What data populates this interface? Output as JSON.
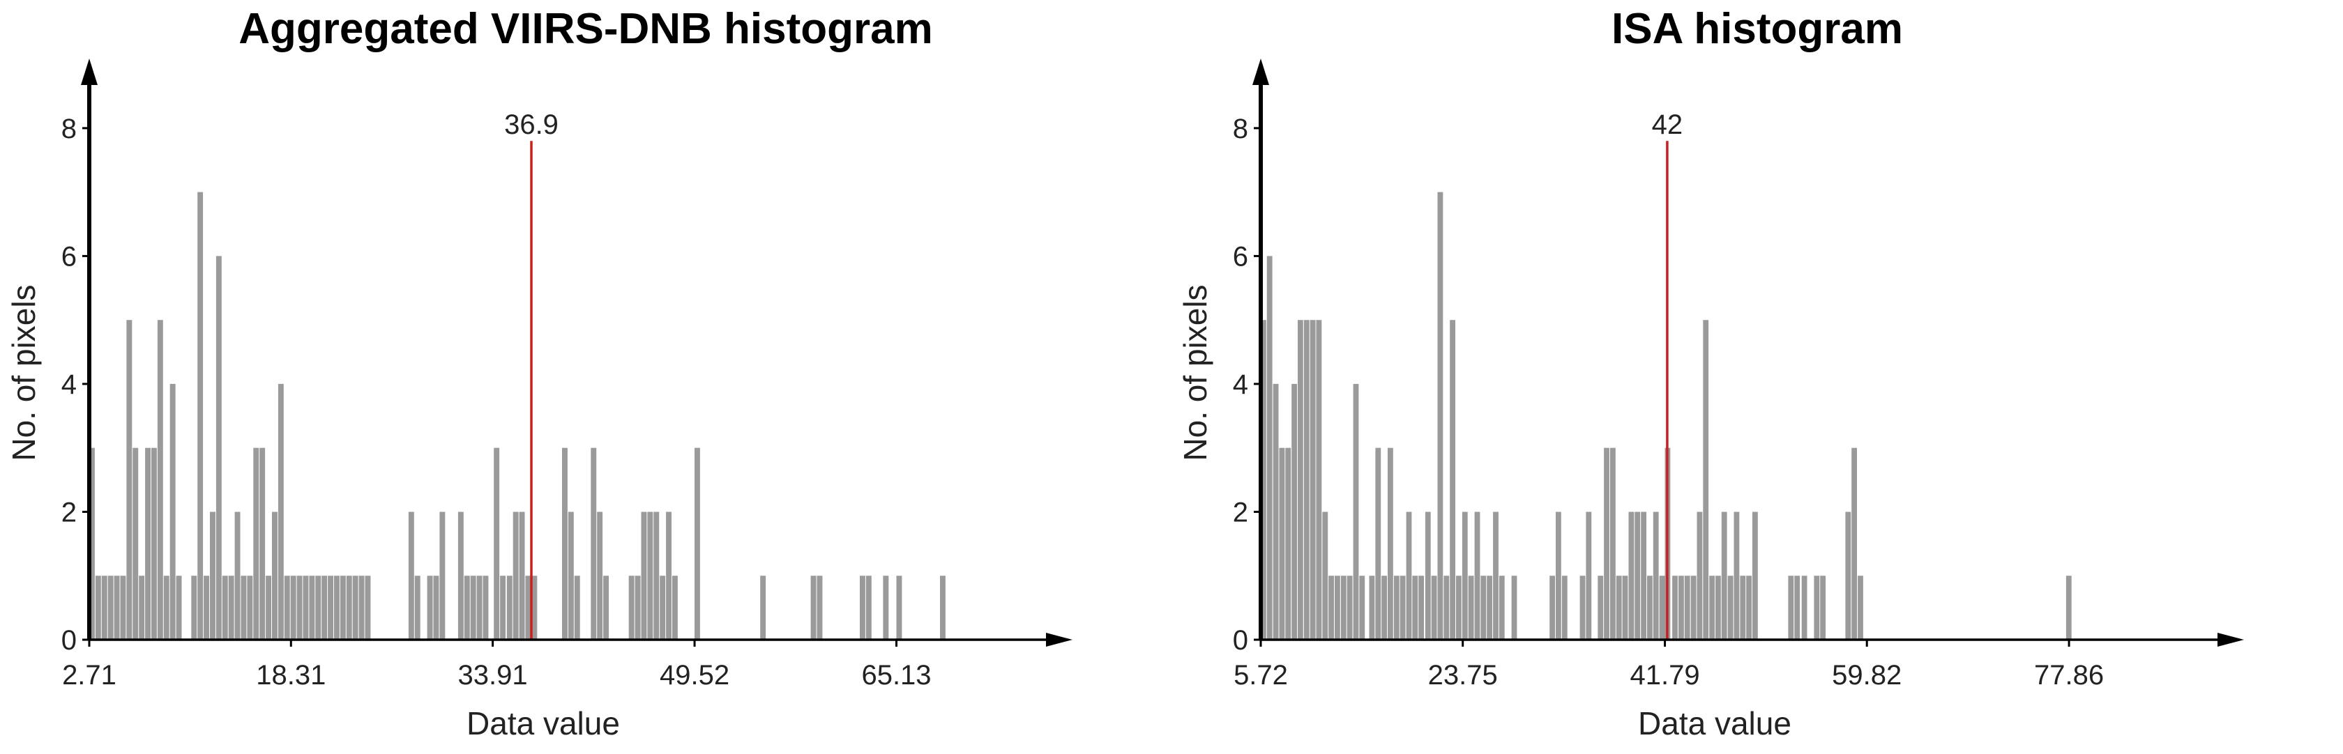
{
  "chart_data": [
    {
      "type": "bar",
      "title": "Aggregated VIIRS-DNB histogram",
      "xlabel": "Data value",
      "ylabel": "No. of pixels",
      "x_ticks": [
        "2.71",
        "18.31",
        "33.91",
        "49.52",
        "65.13"
      ],
      "y_ticks": [
        "0",
        "2",
        "4",
        "6",
        "8"
      ],
      "xlim": [
        2.71,
        74
      ],
      "ylim": [
        0,
        8.5
      ],
      "bin_width": 0.48,
      "bar_color": "#9a9a9b",
      "marker_color": "#c82020",
      "marker": {
        "value": 36.9,
        "label": "36.9"
      },
      "bins": [
        {
          "x": 2.71,
          "count": 3
        },
        {
          "x": 3.19,
          "count": 1
        },
        {
          "x": 3.67,
          "count": 1
        },
        {
          "x": 4.15,
          "count": 1
        },
        {
          "x": 4.63,
          "count": 1
        },
        {
          "x": 5.11,
          "count": 1
        },
        {
          "x": 5.59,
          "count": 5
        },
        {
          "x": 6.07,
          "count": 3
        },
        {
          "x": 6.55,
          "count": 1
        },
        {
          "x": 7.03,
          "count": 3
        },
        {
          "x": 7.51,
          "count": 3
        },
        {
          "x": 7.99,
          "count": 5
        },
        {
          "x": 8.47,
          "count": 1
        },
        {
          "x": 8.95,
          "count": 4
        },
        {
          "x": 9.43,
          "count": 1
        },
        {
          "x": 10.6,
          "count": 1
        },
        {
          "x": 11.08,
          "count": 7
        },
        {
          "x": 11.56,
          "count": 1
        },
        {
          "x": 12.04,
          "count": 2
        },
        {
          "x": 12.52,
          "count": 6
        },
        {
          "x": 13.0,
          "count": 1
        },
        {
          "x": 13.48,
          "count": 1
        },
        {
          "x": 13.96,
          "count": 2
        },
        {
          "x": 14.44,
          "count": 1
        },
        {
          "x": 14.92,
          "count": 1
        },
        {
          "x": 15.4,
          "count": 3
        },
        {
          "x": 15.88,
          "count": 3
        },
        {
          "x": 16.36,
          "count": 1
        },
        {
          "x": 16.84,
          "count": 2
        },
        {
          "x": 17.32,
          "count": 4
        },
        {
          "x": 17.8,
          "count": 1
        },
        {
          "x": 18.28,
          "count": 1
        },
        {
          "x": 18.76,
          "count": 1
        },
        {
          "x": 19.24,
          "count": 1
        },
        {
          "x": 19.72,
          "count": 1
        },
        {
          "x": 20.2,
          "count": 1
        },
        {
          "x": 20.68,
          "count": 1
        },
        {
          "x": 21.16,
          "count": 1
        },
        {
          "x": 21.64,
          "count": 1
        },
        {
          "x": 22.12,
          "count": 1
        },
        {
          "x": 22.6,
          "count": 1
        },
        {
          "x": 23.08,
          "count": 1
        },
        {
          "x": 23.56,
          "count": 1
        },
        {
          "x": 24.04,
          "count": 1
        },
        {
          "x": 27.4,
          "count": 2
        },
        {
          "x": 27.88,
          "count": 1
        },
        {
          "x": 28.84,
          "count": 1
        },
        {
          "x": 29.32,
          "count": 1
        },
        {
          "x": 29.8,
          "count": 2
        },
        {
          "x": 31.23,
          "count": 2
        },
        {
          "x": 31.71,
          "count": 1
        },
        {
          "x": 32.19,
          "count": 1
        },
        {
          "x": 32.67,
          "count": 1
        },
        {
          "x": 33.15,
          "count": 1
        },
        {
          "x": 34.0,
          "count": 3
        },
        {
          "x": 34.48,
          "count": 1
        },
        {
          "x": 35.0,
          "count": 1
        },
        {
          "x": 35.48,
          "count": 2
        },
        {
          "x": 35.96,
          "count": 2
        },
        {
          "x": 36.44,
          "count": 1
        },
        {
          "x": 36.92,
          "count": 1
        },
        {
          "x": 39.27,
          "count": 3
        },
        {
          "x": 39.75,
          "count": 2
        },
        {
          "x": 40.23,
          "count": 1
        },
        {
          "x": 41.5,
          "count": 3
        },
        {
          "x": 41.98,
          "count": 2
        },
        {
          "x": 42.46,
          "count": 1
        },
        {
          "x": 44.43,
          "count": 1
        },
        {
          "x": 44.91,
          "count": 1
        },
        {
          "x": 45.39,
          "count": 2
        },
        {
          "x": 45.87,
          "count": 2
        },
        {
          "x": 46.35,
          "count": 2
        },
        {
          "x": 46.83,
          "count": 1
        },
        {
          "x": 47.31,
          "count": 2
        },
        {
          "x": 47.79,
          "count": 1
        },
        {
          "x": 49.52,
          "count": 3
        },
        {
          "x": 54.6,
          "count": 1
        },
        {
          "x": 58.5,
          "count": 1
        },
        {
          "x": 58.98,
          "count": 1
        },
        {
          "x": 62.3,
          "count": 1
        },
        {
          "x": 62.78,
          "count": 1
        },
        {
          "x": 64.1,
          "count": 1
        },
        {
          "x": 65.13,
          "count": 1
        },
        {
          "x": 68.5,
          "count": 1
        }
      ]
    },
    {
      "type": "bar",
      "title": "ISA histogram",
      "xlabel": "Data value",
      "ylabel": "No. of pixels",
      "x_ticks": [
        "5.72",
        "23.75",
        "41.79",
        "59.82",
        "77.86"
      ],
      "y_ticks": [
        "0",
        "2",
        "4",
        "6",
        "8"
      ],
      "xlim": [
        5.72,
        88
      ],
      "ylim": [
        0,
        8.5
      ],
      "bin_width": 0.55,
      "bar_color": "#9a9a9b",
      "marker_color": "#c82020",
      "marker": {
        "value": 42,
        "label": "42"
      },
      "bins": [
        {
          "x": 5.72,
          "count": 5
        },
        {
          "x": 6.27,
          "count": 6
        },
        {
          "x": 6.82,
          "count": 4
        },
        {
          "x": 7.37,
          "count": 3
        },
        {
          "x": 7.92,
          "count": 3
        },
        {
          "x": 8.47,
          "count": 4
        },
        {
          "x": 9.02,
          "count": 5
        },
        {
          "x": 9.57,
          "count": 5
        },
        {
          "x": 10.12,
          "count": 5
        },
        {
          "x": 10.67,
          "count": 5
        },
        {
          "x": 11.22,
          "count": 2
        },
        {
          "x": 11.77,
          "count": 1
        },
        {
          "x": 12.32,
          "count": 1
        },
        {
          "x": 12.87,
          "count": 1
        },
        {
          "x": 13.42,
          "count": 1
        },
        {
          "x": 13.97,
          "count": 4
        },
        {
          "x": 14.52,
          "count": 1
        },
        {
          "x": 15.4,
          "count": 1
        },
        {
          "x": 15.95,
          "count": 3
        },
        {
          "x": 16.5,
          "count": 1
        },
        {
          "x": 17.05,
          "count": 3
        },
        {
          "x": 17.6,
          "count": 1
        },
        {
          "x": 18.15,
          "count": 1
        },
        {
          "x": 18.7,
          "count": 2
        },
        {
          "x": 19.25,
          "count": 1
        },
        {
          "x": 19.8,
          "count": 1
        },
        {
          "x": 20.4,
          "count": 2
        },
        {
          "x": 20.95,
          "count": 1
        },
        {
          "x": 21.5,
          "count": 7
        },
        {
          "x": 22.05,
          "count": 1
        },
        {
          "x": 22.6,
          "count": 5
        },
        {
          "x": 23.15,
          "count": 1
        },
        {
          "x": 23.7,
          "count": 2
        },
        {
          "x": 24.25,
          "count": 1
        },
        {
          "x": 24.8,
          "count": 2
        },
        {
          "x": 25.35,
          "count": 1
        },
        {
          "x": 25.9,
          "count": 1
        },
        {
          "x": 26.45,
          "count": 2
        },
        {
          "x": 27.0,
          "count": 1
        },
        {
          "x": 28.1,
          "count": 1
        },
        {
          "x": 31.5,
          "count": 1
        },
        {
          "x": 32.05,
          "count": 2
        },
        {
          "x": 32.6,
          "count": 1
        },
        {
          "x": 34.2,
          "count": 1
        },
        {
          "x": 34.75,
          "count": 2
        },
        {
          "x": 35.8,
          "count": 1
        },
        {
          "x": 36.35,
          "count": 3
        },
        {
          "x": 36.9,
          "count": 3
        },
        {
          "x": 37.45,
          "count": 1
        },
        {
          "x": 38.0,
          "count": 1
        },
        {
          "x": 38.55,
          "count": 2
        },
        {
          "x": 39.1,
          "count": 2
        },
        {
          "x": 39.65,
          "count": 2
        },
        {
          "x": 40.2,
          "count": 1
        },
        {
          "x": 40.75,
          "count": 2
        },
        {
          "x": 41.3,
          "count": 1
        },
        {
          "x": 41.79,
          "count": 3
        },
        {
          "x": 42.45,
          "count": 1
        },
        {
          "x": 43.0,
          "count": 1
        },
        {
          "x": 43.55,
          "count": 1
        },
        {
          "x": 44.1,
          "count": 1
        },
        {
          "x": 44.65,
          "count": 2
        },
        {
          "x": 45.2,
          "count": 5
        },
        {
          "x": 45.75,
          "count": 1
        },
        {
          "x": 46.3,
          "count": 1
        },
        {
          "x": 46.85,
          "count": 2
        },
        {
          "x": 47.4,
          "count": 1
        },
        {
          "x": 47.95,
          "count": 2
        },
        {
          "x": 48.5,
          "count": 1
        },
        {
          "x": 49.05,
          "count": 1
        },
        {
          "x": 49.6,
          "count": 2
        },
        {
          "x": 52.8,
          "count": 1
        },
        {
          "x": 53.35,
          "count": 1
        },
        {
          "x": 54.0,
          "count": 1
        },
        {
          "x": 55.1,
          "count": 1
        },
        {
          "x": 55.65,
          "count": 1
        },
        {
          "x": 57.9,
          "count": 2
        },
        {
          "x": 58.45,
          "count": 3
        },
        {
          "x": 59.0,
          "count": 1
        },
        {
          "x": 77.6,
          "count": 1
        }
      ]
    }
  ]
}
